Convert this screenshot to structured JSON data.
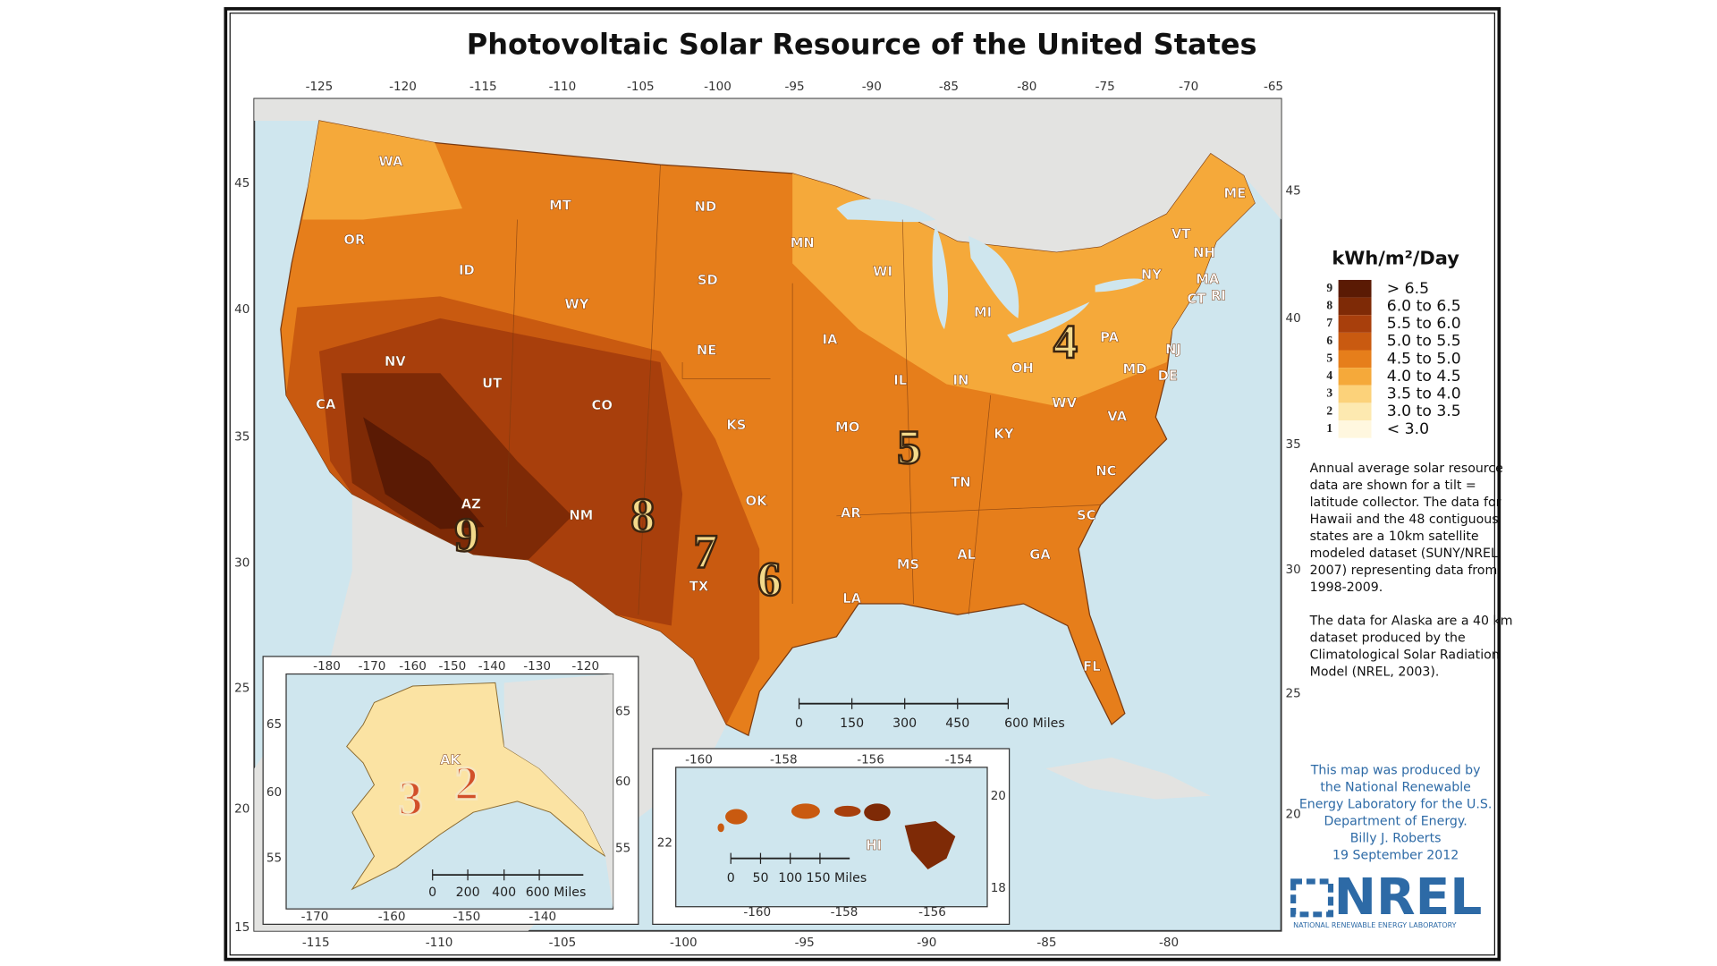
{
  "title": "Photovoltaic Solar Resource of the United States",
  "main_map": {
    "lon_top": [
      "-125",
      "-120",
      "-115",
      "-110",
      "-105",
      "-100",
      "-95",
      "-90",
      "-85",
      "-80",
      "-75",
      "-70",
      "-65"
    ],
    "lon_bottom": [
      "-115",
      "-110",
      "-105",
      "-100",
      "-95",
      "-90",
      "-85",
      "-80"
    ],
    "lat_left": [
      "45",
      "40",
      "35",
      "30",
      "25",
      "20",
      "15"
    ],
    "lat_right": [
      "45",
      "40",
      "35",
      "30",
      "25",
      "20"
    ],
    "states": [
      "WA",
      "OR",
      "CA",
      "NV",
      "ID",
      "MT",
      "WY",
      "UT",
      "AZ",
      "CO",
      "NM",
      "ND",
      "SD",
      "NE",
      "KS",
      "OK",
      "TX",
      "MN",
      "IA",
      "MO",
      "AR",
      "LA",
      "WI",
      "IL",
      "MS",
      "MI",
      "IN",
      "KY",
      "TN",
      "AL",
      "GA",
      "FL",
      "SC",
      "NC",
      "OH",
      "WV",
      "VA",
      "PA",
      "NY",
      "ME",
      "VT",
      "NH",
      "MA",
      "CT",
      "RI",
      "NJ",
      "DE",
      "MD"
    ],
    "zones": [
      "9",
      "8",
      "7",
      "6",
      "5",
      "4"
    ],
    "scale_bar": [
      "0",
      "150",
      "300",
      "450",
      "600 Miles"
    ]
  },
  "alaska_inset": {
    "label": "AK",
    "lon_top": [
      "-180",
      "-170",
      "-160",
      "-150",
      "-140",
      "-130",
      "-120"
    ],
    "lon_bottom": [
      "-170",
      "-160",
      "-150",
      "-140"
    ],
    "lat_left": [
      "65",
      "60",
      "55"
    ],
    "lat_right": [
      "65",
      "60",
      "55"
    ],
    "zones": [
      "3",
      "2"
    ],
    "scale_bar": [
      "0",
      "200",
      "400",
      "600 Miles"
    ]
  },
  "hawaii_inset": {
    "label": "HI",
    "lon_top": [
      "-160",
      "-158",
      "-156",
      "-154"
    ],
    "lon_bottom": [
      "-160",
      "-158",
      "-156"
    ],
    "lat_left": [
      "22"
    ],
    "lat_right": [
      "20",
      "18"
    ],
    "scale_bar": [
      "0",
      "50",
      "100",
      "150 Miles"
    ]
  },
  "legend": {
    "title": "kWh/m²/Day",
    "items": [
      {
        "class": "9",
        "label": "> 6.5",
        "color": "#5a1a04"
      },
      {
        "class": "8",
        "label": "6.0 to 6.5",
        "color": "#7e2a06"
      },
      {
        "class": "7",
        "label": "5.5 to 6.0",
        "color": "#a83f0c"
      },
      {
        "class": "6",
        "label": "5.0 to 5.5",
        "color": "#c95a10"
      },
      {
        "class": "5",
        "label": "4.5 to 5.0",
        "color": "#e67e1b"
      },
      {
        "class": "4",
        "label": "4.0 to 4.5",
        "color": "#f5a93a"
      },
      {
        "class": "3",
        "label": "3.5 to 4.0",
        "color": "#fcd27a"
      },
      {
        "class": "2",
        "label": "3.0 to 3.5",
        "color": "#fde9b0"
      },
      {
        "class": "1",
        "label": "< 3.0",
        "color": "#fff7df"
      }
    ]
  },
  "notes": [
    [
      "Annual average solar resource",
      "data are shown for a tilt =",
      "latitude collector.  The data for",
      "Hawaii and the 48 contiguous",
      "states are a 10km satellite",
      "modeled dataset (SUNY/NREL,",
      "2007) representing data from",
      "1998-2009."
    ],
    [
      "The data for Alaska are a 40 km",
      "dataset produced by the",
      "Climatological Solar Radiation",
      "Model (NREL, 2003)."
    ]
  ],
  "credits": [
    "This map was produced by",
    "the National Renewable",
    "Energy Laboratory for the U.S.",
    "Department of Energy.",
    "Billy J. Roberts",
    "19 September 2012"
  ],
  "logo": {
    "name": "NREL",
    "subtitle": "NATIONAL RENEWABLE ENERGY LABORATORY"
  }
}
